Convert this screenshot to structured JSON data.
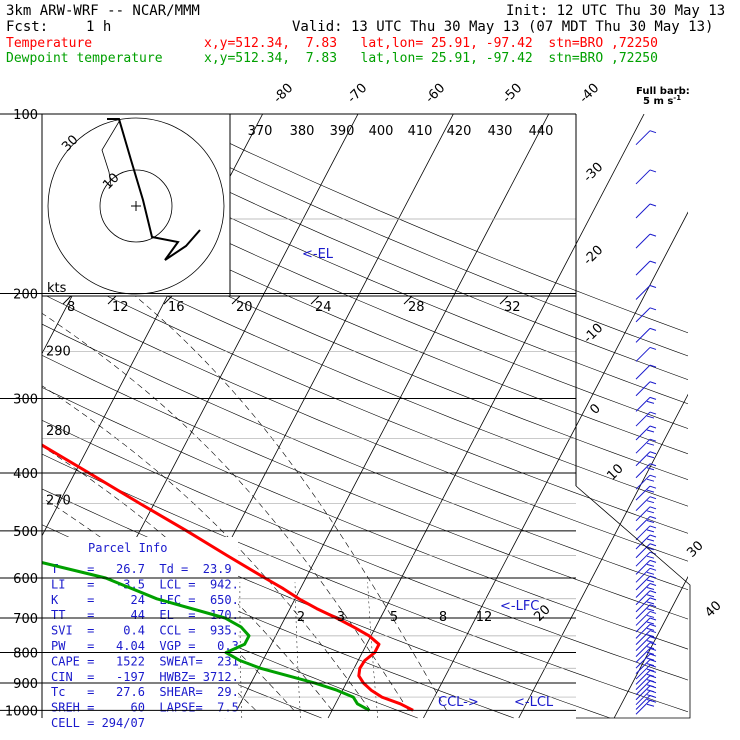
{
  "header": {
    "model": "3km ARW-WRF -- NCAR/MMM",
    "init": "Init: 12 UTC Thu 30 May 13",
    "fcst_label": "Fcst:",
    "fcst_value": "1 h",
    "valid": "Valid: 13 UTC Thu 30 May 13 (07 MDT Thu 30 May 13)",
    "temp_label": "Temperature",
    "temp_info": "x,y=512.34,  7.83   lat,lon= 25.91, -97.42  stn=BRO ,72250",
    "dew_label": "Dewpoint temperature",
    "dew_info": "x,y=512.34,  7.83   lat,lon= 25.91, -97.42  stn=BRO ,72250",
    "barb_label_1": "Full barb:",
    "barb_label_2": "5 m s",
    "barb_label_sup": "-1"
  },
  "colors": {
    "temperature": "#ff0000",
    "dewpoint": "#00a000",
    "annotation": "#1a1acc",
    "background": "#ffffff"
  },
  "chart_data": {
    "type": "skew-t",
    "pressure_levels": [
      100,
      200,
      300,
      400,
      500,
      600,
      700,
      800,
      900,
      1000
    ],
    "pressure_range": [
      100,
      1030
    ],
    "temperature_range_at_base": [
      -10,
      46
    ],
    "isotherm_labels": [
      -80,
      -70,
      -60,
      -50,
      -40,
      -30,
      -20,
      -10,
      0,
      10,
      20,
      30,
      40
    ],
    "dry_adiabat_labels": [
      {
        "theta": 290,
        "p": 250
      },
      {
        "theta": 280,
        "p": 340
      },
      {
        "theta": 270,
        "p": 445
      }
    ],
    "moist_adiabat_labels": [
      370,
      380,
      390,
      400,
      410,
      420,
      430,
      440
    ],
    "mixing_ratio_labels": [
      2,
      3,
      5,
      8,
      12,
      20
    ],
    "temperature": {
      "name": "Temperature",
      "p": [
        1000,
        975,
        950,
        925,
        900,
        875,
        850,
        825,
        800,
        775,
        750,
        725,
        700,
        675,
        650,
        625,
        600,
        550,
        500,
        450,
        400,
        350,
        300,
        250,
        200,
        175,
        150,
        125,
        110,
        100
      ],
      "t": [
        28.5,
        26.8,
        24.5,
        23.0,
        21.8,
        20.9,
        20.6,
        20.7,
        21.3,
        21.3,
        19.8,
        17.7,
        15.4,
        12.8,
        10.4,
        8.2,
        5.7,
        0.5,
        -5.1,
        -11.5,
        -18.5,
        -26.5,
        -36.0,
        -47.0,
        -58.0,
        -64.0,
        -70.0,
        -71.0,
        -68.0,
        -66.0
      ]
    },
    "dewpoint": {
      "name": "Dewpoint temperature",
      "p": [
        1000,
        975,
        950,
        925,
        900,
        875,
        850,
        825,
        800,
        775,
        750,
        725,
        700,
        650,
        600,
        550,
        500,
        450,
        400,
        350,
        300,
        250,
        200,
        150,
        125,
        100
      ],
      "t": [
        23.9,
        22.3,
        21.5,
        19.4,
        16.7,
        13.5,
        10.2,
        7.6,
        5.7,
        7.2,
        7.2,
        5.9,
        3.7,
        -4.5,
        -11.0,
        -22.0,
        -30.0,
        -44.0,
        -52.0,
        -58.0,
        -58.0,
        -62.0,
        -68.0,
        -80.0,
        -82.0,
        -87.0
      ]
    },
    "level_markers": [
      {
        "label": "<-EL",
        "p": 170
      },
      {
        "label": "<-LFC",
        "p": 650
      },
      {
        "label": "<-LCL",
        "p": 942
      },
      {
        "label": "CCL->",
        "p": 935
      }
    ],
    "hodograph": {
      "units": "kts",
      "ring_labels": [
        "30",
        "10"
      ],
      "scale_ticks": [
        "8",
        "12",
        "16",
        "20",
        "24",
        "28",
        "32"
      ]
    },
    "parcel_info": {
      "title": "Parcel Info",
      "rows": [
        "T    =   26.7  Td =  23.9",
        "LI   =   -3.5  LCL =  942.",
        "K    =     24  LFC =  650.",
        "TT   =     44  EL  =  170.",
        "SVI  =    0.4  CCL =  935.",
        "PW   =   4.04  VGP =   0.3",
        "CAPE =   1522  SWEAT=  231",
        "CIN  =   -197  HWBZ= 3712.",
        "Tc   =   27.6  SHEAR=  29.",
        "SREH =     60  LAPSE=  7.5",
        "CELL = 294/07"
      ]
    }
  }
}
